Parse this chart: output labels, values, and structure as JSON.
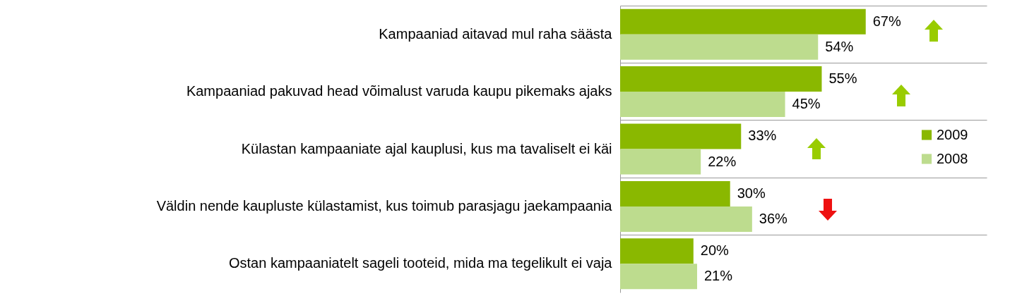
{
  "chart_data": {
    "type": "bar",
    "orientation": "horizontal",
    "categories": [
      "Kampaaniad aitavad mul raha säästa",
      "Kampaaniad pakuvad head võimalust varuda kaupu pikemaks ajaks",
      "Külastan kampaaniate ajal kauplusi, kus ma tavaliselt ei käi",
      "Väldin nende kaupluste külastamist, kus toimub parasjagu jaekampaania",
      "Ostan kampaaniatelt sageli tooteid, mida ma tegelikult ei vaja"
    ],
    "series": [
      {
        "name": "2009",
        "color": "#8ab800",
        "values": [
          67,
          55,
          33,
          30,
          20
        ],
        "value_labels": [
          "67%",
          "55%",
          "33%",
          "30%",
          "20%"
        ]
      },
      {
        "name": "2008",
        "color": "#bddc8e",
        "values": [
          54,
          45,
          22,
          36,
          21
        ],
        "value_labels": [
          "54%",
          "45%",
          "22%",
          "36%",
          "21%"
        ]
      }
    ],
    "xlim": [
      0,
      100
    ],
    "tick_labels": "y",
    "grid": "y",
    "legend": "right"
  }
}
